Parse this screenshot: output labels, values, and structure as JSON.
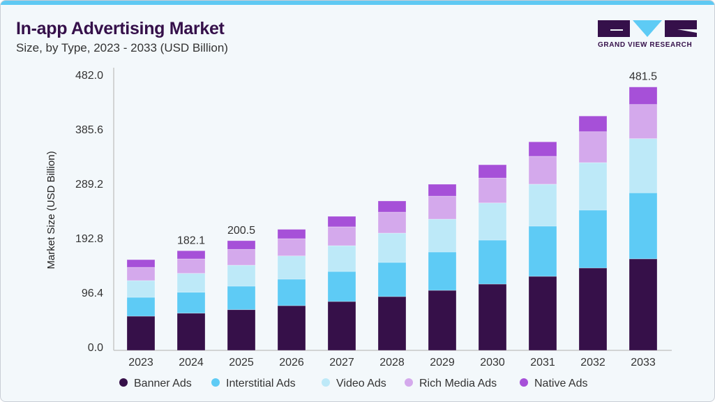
{
  "header": {
    "title": "In-app Advertising Market",
    "subtitle": "Size, by Type, 2023 - 2033 (USD Billion)"
  },
  "logo": {
    "text": "GRAND VIEW RESEARCH"
  },
  "chart_data": {
    "type": "bar",
    "stacked": true,
    "title": "In-app Advertising Market",
    "subtitle": "Size, by Type, 2023 - 2033 (USD Billion)",
    "xlabel": "",
    "ylabel": "Market Size (USD Billion)",
    "ylim": [
      0,
      482.0
    ],
    "yticks": [
      "0.0",
      "96.4",
      "192.8",
      "289.2",
      "385.6",
      "482.0"
    ],
    "grid": false,
    "legend": "bottom",
    "categories": [
      "2023",
      "2024",
      "2025",
      "2026",
      "2027",
      "2028",
      "2029",
      "2030",
      "2031",
      "2032",
      "2033"
    ],
    "series": [
      {
        "name": "Banner Ads",
        "color": "#361049",
        "values": [
          62.5,
          68.0,
          74.4,
          81.7,
          89.3,
          98.3,
          109.7,
          121.2,
          135.3,
          150.6,
          167.3
        ]
      },
      {
        "name": "Interstitial Ads",
        "color": "#5ecbf5",
        "values": [
          34.5,
          38.3,
          43.0,
          48.5,
          54.9,
          62.5,
          70.2,
          80.4,
          91.9,
          105.9,
          120.8
        ]
      },
      {
        "name": "Video Ads",
        "color": "#bde9f8",
        "values": [
          30.6,
          34.5,
          38.3,
          42.5,
          47.2,
          53.6,
          60.0,
          68.0,
          76.6,
          86.8,
          99.0
        ]
      },
      {
        "name": "Rich Media Ads",
        "color": "#d4a9ec",
        "values": [
          24.2,
          26.4,
          29.0,
          31.5,
          34.5,
          38.3,
          42.1,
          45.5,
          51.0,
          56.5,
          62.5
        ]
      },
      {
        "name": "Native Ads",
        "color": "#a650d8",
        "values": [
          14.0,
          14.9,
          15.8,
          17.0,
          19.1,
          20.4,
          21.7,
          24.2,
          26.4,
          28.6,
          31.9
        ]
      }
    ],
    "data_labels": {
      "2024": "182.1",
      "2025": "200.5",
      "2033": "481.5"
    }
  }
}
